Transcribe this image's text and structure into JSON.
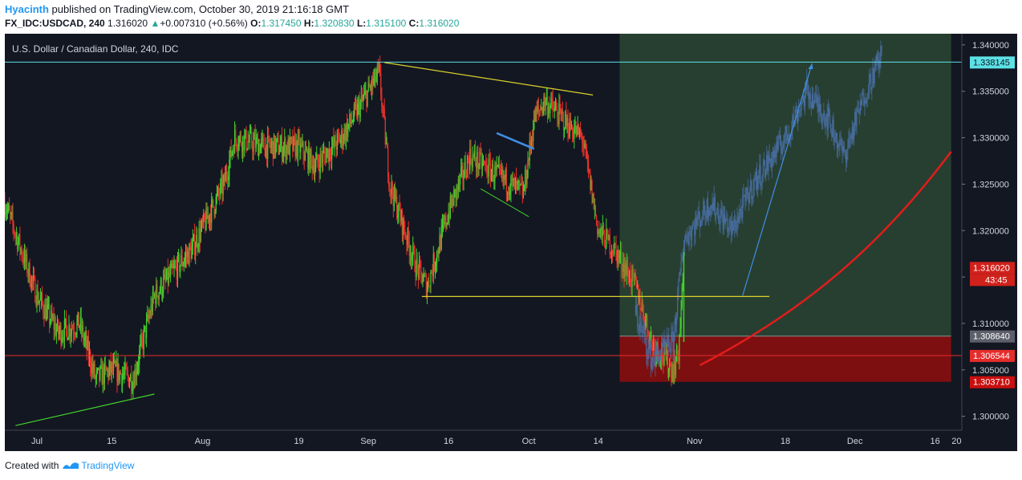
{
  "header": {
    "author": "Hyacinth",
    "published": "published on TradingView.com, October 30, 2019 21:16:18 GMT",
    "symbol": "FX_IDC:USDCAD, 240",
    "last": "1.316020",
    "change_arrow": "▲",
    "change": "+0.007310 (+0.56%)",
    "open_label": "O:",
    "open": "1.317450",
    "high_label": "H:",
    "high": "1.320830",
    "low_label": "L:",
    "low": "1.315100",
    "close_label": "C:",
    "close": "1.316020"
  },
  "footer": {
    "created_with": "Created with",
    "brand": "TradingView",
    "logo_icon": "tradingview-logo-icon"
  },
  "colors": {
    "background": "#131722",
    "up": "#43d12e",
    "down": "#e8322b",
    "grid": "#2a2e39",
    "projection": "#4a6fa5",
    "resistance": "#5ce1e6",
    "support": "#e62c2c",
    "trendline": "#d9d02a",
    "green_zone": "#2c4632",
    "red_zone": "#8b0e0e",
    "curve": "#e21c1c",
    "accent_blue": "#3f8fe8"
  },
  "chart_data": {
    "type": "candlestick",
    "title": "U.S. Dollar / Canadian Dollar, 240, IDC",
    "xlabel": "",
    "ylabel": "",
    "ylim": [
      1.2985,
      1.3412
    ],
    "grid": false,
    "x_ticks": [
      "Jul",
      "15",
      "Aug",
      "19",
      "Sep",
      "16",
      "Oct",
      "14",
      "Nov",
      "18",
      "Dec",
      "16",
      "20"
    ],
    "y_ticks": [
      "1.300000",
      "1.305000",
      "1.310000",
      "1.315000",
      "1.320000",
      "1.325000",
      "1.330000",
      "1.335000",
      "1.340000"
    ],
    "price_path": [
      [
        "Jun 25",
        1.323
      ],
      [
        "Jul 1",
        1.313
      ],
      [
        "Jul 5",
        1.309
      ],
      [
        "Jul 9",
        1.31
      ],
      [
        "Jul 12",
        1.304
      ],
      [
        "Jul 15",
        1.305
      ],
      [
        "Jul 19",
        1.304
      ],
      [
        "Jul 23",
        1.313
      ],
      [
        "Jul 30",
        1.318
      ],
      [
        "Aug 5",
        1.325
      ],
      [
        "Aug 7",
        1.33
      ],
      [
        "Aug 13",
        1.329
      ],
      [
        "Aug 19",
        1.329
      ],
      [
        "Aug 22",
        1.327
      ],
      [
        "Aug 27",
        1.33
      ],
      [
        "Sep 3",
        1.337
      ],
      [
        "Sep 5",
        1.325
      ],
      [
        "Sep 10",
        1.316
      ],
      [
        "Sep 12",
        1.314
      ],
      [
        "Sep 16",
        1.322
      ],
      [
        "Sep 20",
        1.328
      ],
      [
        "Sep 25",
        1.326
      ],
      [
        "Sep 30",
        1.324
      ],
      [
        "Oct 2",
        1.332
      ],
      [
        "Oct 4",
        1.334
      ],
      [
        "Oct 9",
        1.331
      ],
      [
        "Oct 11",
        1.33
      ],
      [
        "Oct 14",
        1.32
      ],
      [
        "Oct 17",
        1.318
      ],
      [
        "Oct 21",
        1.314
      ],
      [
        "Oct 24",
        1.308
      ],
      [
        "Oct 28",
        1.305
      ],
      [
        "Oct 29",
        1.307
      ],
      [
        "Oct 30",
        1.316
      ]
    ],
    "projection_path": [
      [
        "Oct 21",
        1.311
      ],
      [
        "Oct 24",
        1.306
      ],
      [
        "Oct 28",
        1.308
      ],
      [
        "Oct 30",
        1.319
      ],
      [
        "Nov 4",
        1.323
      ],
      [
        "Nov 8",
        1.32
      ],
      [
        "Nov 12",
        1.325
      ],
      [
        "Nov 18",
        1.33
      ],
      [
        "Nov 22",
        1.335
      ],
      [
        "Nov 26",
        1.332
      ],
      [
        "Nov 29",
        1.328
      ],
      [
        "Dec 3",
        1.335
      ],
      [
        "Dec 6",
        1.339
      ]
    ],
    "price_labels": [
      {
        "value": "1.338145",
        "kind": "resistance"
      },
      {
        "value": "1.316020",
        "kind": "last",
        "countdown": "43:45"
      },
      {
        "value": "1.308640",
        "kind": "zone_top"
      },
      {
        "value": "1.306544",
        "kind": "support"
      },
      {
        "value": "1.303710",
        "kind": "zone_bottom"
      }
    ],
    "annotations": {
      "resistance_level": 1.338145,
      "support_level": 1.306544,
      "red_zone": {
        "from": "Oct 18",
        "to": "Dec 19",
        "low": 1.30371,
        "high": 1.30864
      },
      "green_zone": {
        "from": "Oct 18",
        "to": "Dec 19",
        "low": 1.30864,
        "high": 1.3412
      },
      "yellow_trendline": [
        [
          "Sep 4",
          1.3381
        ],
        [
          "Oct 13",
          1.3346
        ]
      ],
      "yellow_neckline": [
        [
          "Sep 11",
          1.3129
        ],
        [
          "Nov 15",
          1.3129
        ]
      ],
      "green_trendline": [
        [
          "Jun 27",
          1.299
        ],
        [
          "Jul 23",
          1.3024
        ]
      ],
      "green_wedge": [
        [
          "Sep 22",
          1.3245
        ],
        [
          "Oct 1",
          1.3215
        ]
      ],
      "blue_segment": [
        [
          "Sep 25",
          1.3305
        ],
        [
          "Oct 2",
          1.3288
        ]
      ],
      "blue_arrow": [
        [
          "Nov 10",
          1.313
        ],
        [
          "Nov 23",
          1.338
        ]
      ],
      "red_curve": [
        [
          "Nov 2",
          1.3055
        ],
        [
          "Nov 22",
          1.3115
        ],
        [
          "Dec 6",
          1.3185
        ],
        [
          "Dec 19",
          1.3285
        ]
      ],
      "green_spike": [
        [
          "Oct 30",
          1.308
        ],
        [
          "Oct 30",
          1.3177
        ]
      ]
    }
  }
}
